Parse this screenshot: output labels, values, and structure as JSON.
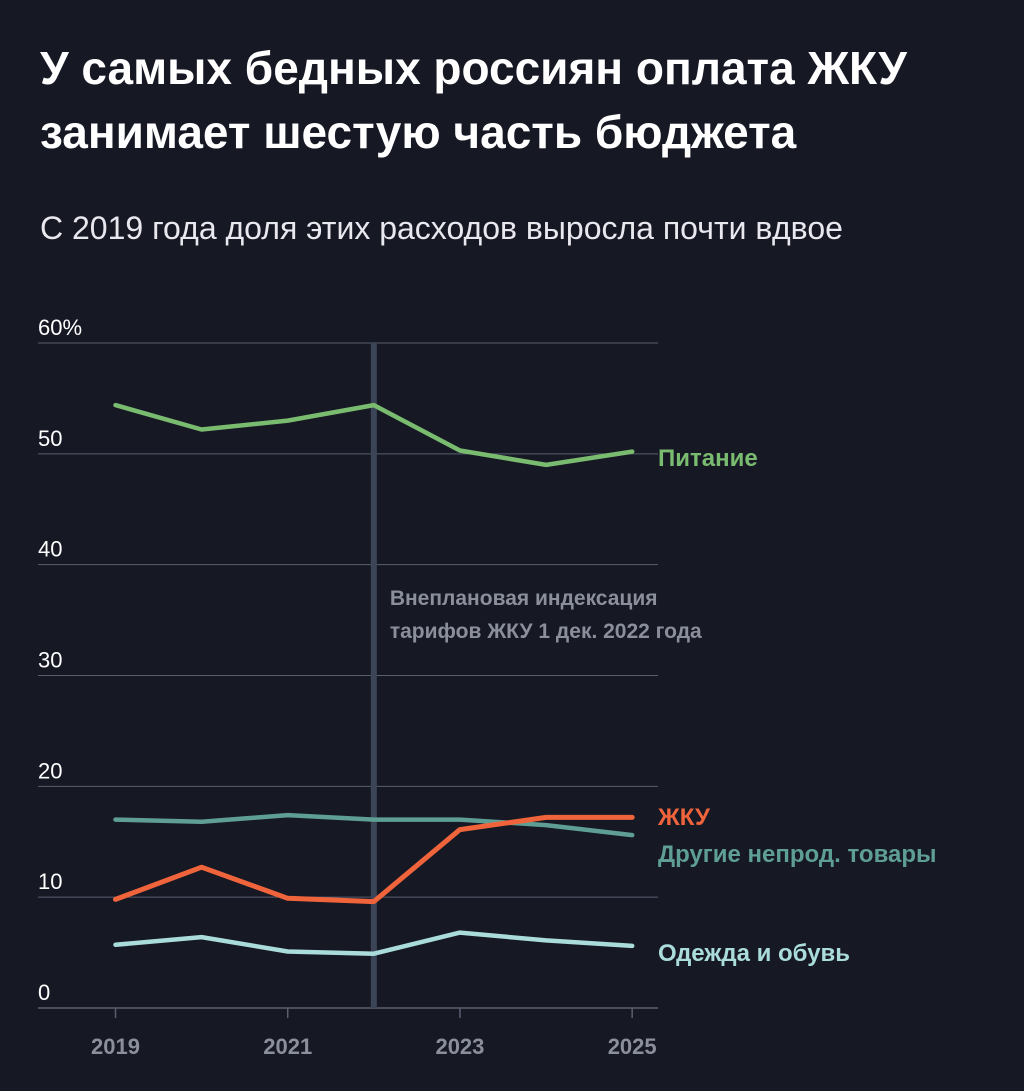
{
  "header": {
    "title": "У самых бедных россиян оплата ЖКУ занимает шестую часть бюджета",
    "subtitle": "С 2019 года доля этих расходов выросла почти вдвое"
  },
  "chart_data": {
    "type": "line",
    "title": "У самых бедных россиян оплата ЖКУ занимает шестую часть бюджета",
    "subtitle": "С 2019 года доля этих расходов выросла почти вдвое",
    "xlabel": "",
    "ylabel": "",
    "x": [
      2019,
      2020,
      2021,
      2022,
      2023,
      2024,
      2025
    ],
    "x_tick_labels": [
      "2019",
      "2021",
      "2023",
      "2025"
    ],
    "x_tick_values": [
      2019,
      2021,
      2023,
      2025
    ],
    "y_tick_labels": [
      "0",
      "10",
      "20",
      "30",
      "40",
      "50",
      "60%"
    ],
    "y_tick_values": [
      0,
      10,
      20,
      30,
      40,
      50,
      60
    ],
    "ylim": [
      0,
      60
    ],
    "xlim": [
      2018.1,
      2025.3
    ],
    "grid": true,
    "series": [
      {
        "name": "Питание",
        "color": "#79bb6f",
        "values": [
          54.4,
          52.2,
          53.0,
          54.4,
          50.3,
          49.0,
          50.2
        ]
      },
      {
        "name": "Другие непрод. товары",
        "color": "#5e9e95",
        "values": [
          17.0,
          16.8,
          17.4,
          17.0,
          17.0,
          16.5,
          15.6
        ]
      },
      {
        "name": "ЖКУ",
        "color": "#f0643c",
        "values": [
          9.8,
          12.7,
          9.9,
          9.6,
          16.1,
          17.2,
          17.2
        ]
      },
      {
        "name": "Одежда и обувь",
        "color": "#a9dcdb",
        "values": [
          5.7,
          6.4,
          5.1,
          4.9,
          6.8,
          6.1,
          5.6
        ]
      }
    ],
    "annotation": {
      "x": 2022,
      "lines": [
        "Внеплановая индексация",
        "тарифов ЖКУ 1 дек. 2022 года"
      ],
      "line_color": "#3c4558"
    },
    "colors": {
      "background": "#161824",
      "grid": "#5a5f6e",
      "axis_tick_text": "#8b8f9c"
    }
  }
}
